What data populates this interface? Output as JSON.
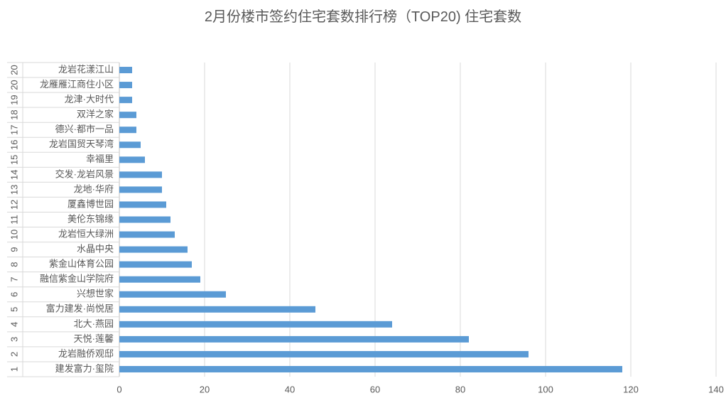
{
  "chart_data": {
    "type": "bar",
    "orientation": "horizontal",
    "title": "2月份楼市签约住宅套数排行榜（TOP20) 住宅套数",
    "ranks": [
      "1",
      "2",
      "3",
      "4",
      "5",
      "6",
      "7",
      "8",
      "9",
      "10",
      "11",
      "12",
      "13",
      "14",
      "15",
      "16",
      "17",
      "18",
      "19",
      "20",
      "20"
    ],
    "categories": [
      "建发富力·玺院",
      "龙岩融侨观邸",
      "天悦·莲馨",
      "北大·燕园",
      "富力建发·尚悦居",
      "兴想世家",
      "融信紫金山学院府",
      "紫金山体育公园",
      "水晶中央",
      "龙岩恒大绿洲",
      "美伦东锦缘",
      "厦鑫博世园",
      "龙地·华府",
      "交发·龙岩风景",
      "幸福里",
      "龙岩国贸天琴湾",
      "德兴·都市一品",
      "双洋之家",
      "龙津·大时代",
      "龙雁雁江商住小区",
      "龙岩花漾江山"
    ],
    "values": [
      118,
      96,
      82,
      64,
      46,
      25,
      19,
      17,
      16,
      13,
      12,
      11,
      10,
      10,
      6,
      5,
      4,
      4,
      3,
      3,
      3
    ],
    "color": "#5b9bd5",
    "xlim": [
      0,
      140
    ],
    "xticks": [
      0,
      20,
      40,
      60,
      80,
      100,
      120,
      140
    ],
    "grid": true
  }
}
